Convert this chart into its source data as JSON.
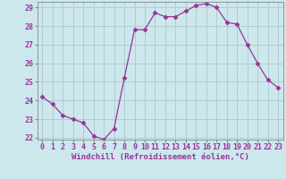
{
  "x": [
    0,
    1,
    2,
    3,
    4,
    5,
    6,
    7,
    8,
    9,
    10,
    11,
    12,
    13,
    14,
    15,
    16,
    17,
    18,
    19,
    20,
    21,
    22,
    23
  ],
  "y": [
    24.2,
    23.8,
    23.2,
    23.0,
    22.8,
    22.1,
    21.9,
    22.5,
    25.2,
    27.8,
    27.8,
    28.7,
    28.5,
    28.5,
    28.8,
    29.1,
    29.2,
    29.0,
    28.2,
    28.1,
    27.0,
    26.0,
    25.1,
    24.7
  ],
  "line_color": "#993399",
  "marker": "D",
  "marker_size": 2.5,
  "bg_color": "#cce8ed",
  "grid_color": "#b0cdd4",
  "xlabel": "Windchill (Refroidissement éolien,°C)",
  "ylim_min": 21.9,
  "ylim_max": 29.3,
  "xlim_min": -0.5,
  "xlim_max": 23.5,
  "yticks": [
    22,
    23,
    24,
    25,
    26,
    27,
    28,
    29
  ],
  "xticks": [
    0,
    1,
    2,
    3,
    4,
    5,
    6,
    7,
    8,
    9,
    10,
    11,
    12,
    13,
    14,
    15,
    16,
    17,
    18,
    19,
    20,
    21,
    22,
    23
  ],
  "xlabel_fontsize": 6.5,
  "tick_fontsize": 6.0,
  "tick_color": "#993399",
  "label_color": "#993399",
  "spine_color": "#888888"
}
